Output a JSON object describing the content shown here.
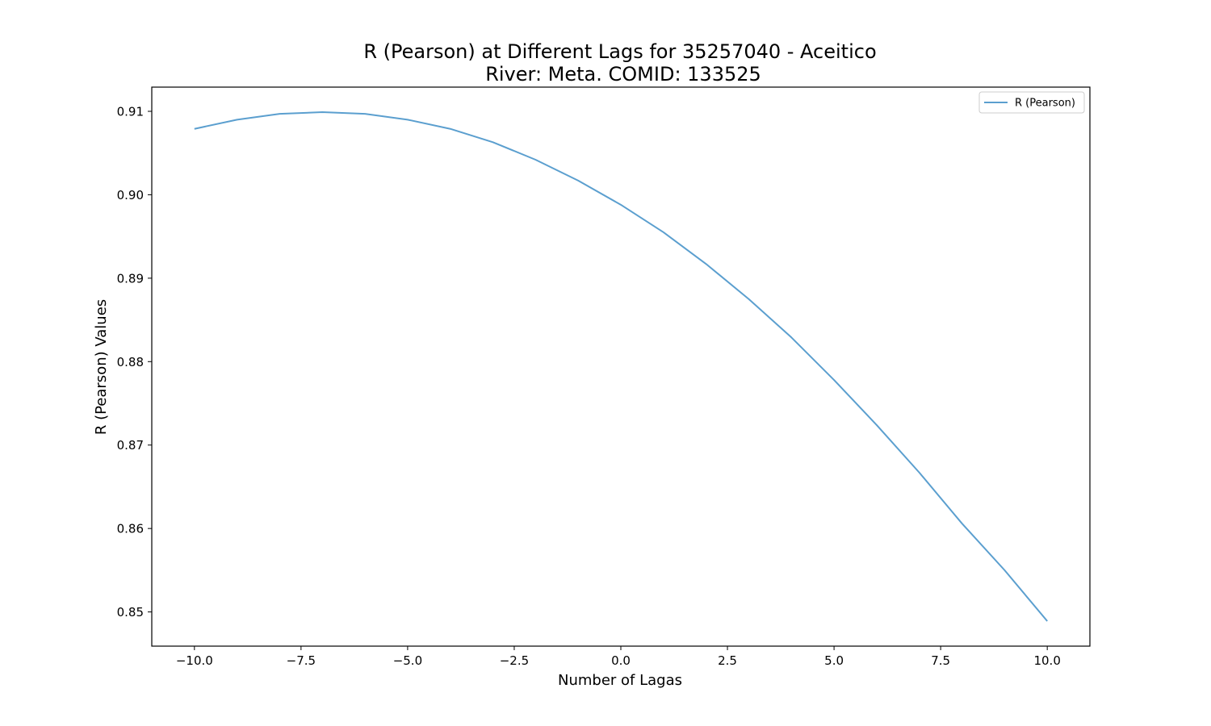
{
  "chart_data": {
    "type": "line",
    "title": "R (Pearson) at Different Lags for 35257040 - Aceitico",
    "subtitle": "River: Meta. COMID: 133525",
    "xlabel": "Number of Lagas",
    "ylabel": "R (Pearson) Values",
    "xlim": [
      -11.0,
      11.0
    ],
    "ylim": [
      0.8459,
      0.9129
    ],
    "x_ticks": [
      -10.0,
      -7.5,
      -5.0,
      -2.5,
      0.0,
      2.5,
      5.0,
      7.5,
      10.0
    ],
    "x_tick_labels": [
      "−10.0",
      "−7.5",
      "−5.0",
      "−2.5",
      "0.0",
      "2.5",
      "5.0",
      "7.5",
      "10.0"
    ],
    "y_ticks": [
      0.85,
      0.86,
      0.87,
      0.88,
      0.89,
      0.9,
      0.91
    ],
    "y_tick_labels": [
      "0.85",
      "0.86",
      "0.87",
      "0.88",
      "0.89",
      "0.90",
      "0.91"
    ],
    "grid": false,
    "legend_position": "top-right",
    "series": [
      {
        "name": "R (Pearson)",
        "color": "#5b9fcf",
        "x": [
          -10,
          -9,
          -8,
          -7,
          -6,
          -5,
          -4,
          -3,
          -2,
          -1,
          0,
          1,
          2,
          3,
          4,
          5,
          6,
          7,
          8,
          9,
          10
        ],
        "values": [
          0.9079,
          0.909,
          0.9097,
          0.9099,
          0.9097,
          0.909,
          0.9079,
          0.9063,
          0.9042,
          0.9017,
          0.8988,
          0.8955,
          0.8917,
          0.8875,
          0.8829,
          0.8778,
          0.8724,
          0.8667,
          0.8606,
          0.855,
          0.8489
        ]
      }
    ]
  }
}
